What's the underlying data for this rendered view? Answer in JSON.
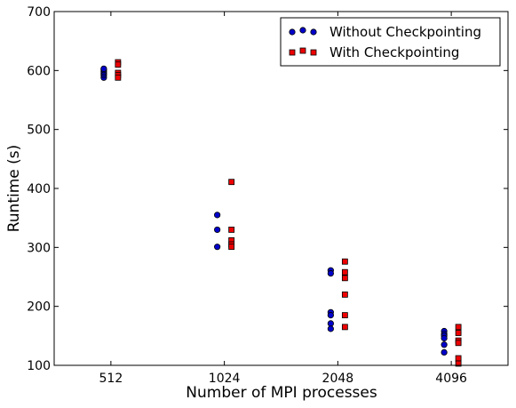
{
  "chart_data": {
    "type": "scatter",
    "xlabel": "Number of MPI processes",
    "ylabel": "Runtime (s)",
    "categories": [
      "512",
      "1024",
      "2048",
      "4096"
    ],
    "ylim": [
      100,
      700
    ],
    "yticks": [
      "100",
      "200",
      "300",
      "400",
      "500",
      "600",
      "700"
    ],
    "grid": false,
    "legend_position": "top-right",
    "series": [
      {
        "name": "Without Checkpointing",
        "marker": "circle",
        "color": "#0000cc",
        "points": [
          {
            "x": "512",
            "y": 588
          },
          {
            "x": "512",
            "y": 592
          },
          {
            "x": "512",
            "y": 595
          },
          {
            "x": "512",
            "y": 598
          },
          {
            "x": "512",
            "y": 601
          },
          {
            "x": "512",
            "y": 603
          },
          {
            "x": "1024",
            "y": 355
          },
          {
            "x": "1024",
            "y": 330
          },
          {
            "x": "1024",
            "y": 301
          },
          {
            "x": "2048",
            "y": 261
          },
          {
            "x": "2048",
            "y": 256
          },
          {
            "x": "2048",
            "y": 190
          },
          {
            "x": "2048",
            "y": 185
          },
          {
            "x": "2048",
            "y": 171
          },
          {
            "x": "2048",
            "y": 162
          },
          {
            "x": "4096",
            "y": 158
          },
          {
            "x": "4096",
            "y": 153
          },
          {
            "x": "4096",
            "y": 150
          },
          {
            "x": "4096",
            "y": 146
          },
          {
            "x": "4096",
            "y": 135
          },
          {
            "x": "4096",
            "y": 122
          }
        ]
      },
      {
        "name": "With Checkpointing",
        "marker": "square",
        "color": "#ee0000",
        "points": [
          {
            "x": "512",
            "y": 614
          },
          {
            "x": "512",
            "y": 610
          },
          {
            "x": "512",
            "y": 596
          },
          {
            "x": "512",
            "y": 592
          },
          {
            "x": "512",
            "y": 588
          },
          {
            "x": "1024",
            "y": 411
          },
          {
            "x": "1024",
            "y": 330
          },
          {
            "x": "1024",
            "y": 312
          },
          {
            "x": "1024",
            "y": 305
          },
          {
            "x": "1024",
            "y": 301
          },
          {
            "x": "2048",
            "y": 276
          },
          {
            "x": "2048",
            "y": 258
          },
          {
            "x": "2048",
            "y": 248
          },
          {
            "x": "2048",
            "y": 220
          },
          {
            "x": "2048",
            "y": 185
          },
          {
            "x": "2048",
            "y": 165
          },
          {
            "x": "4096",
            "y": 165
          },
          {
            "x": "4096",
            "y": 155
          },
          {
            "x": "4096",
            "y": 142
          },
          {
            "x": "4096",
            "y": 138
          },
          {
            "x": "4096",
            "y": 112
          },
          {
            "x": "4096",
            "y": 103
          }
        ]
      }
    ]
  }
}
